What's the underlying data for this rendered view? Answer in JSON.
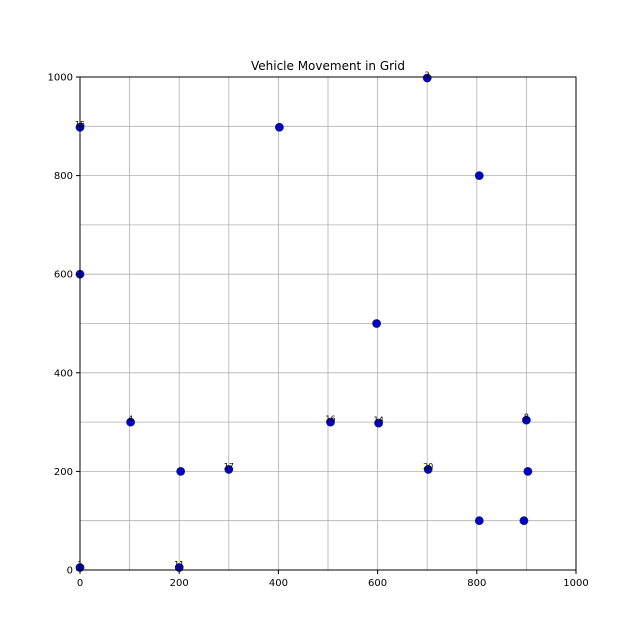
{
  "chart_data": {
    "type": "scatter",
    "title": "Vehicle Movement in Grid",
    "xlabel": "",
    "ylabel": "",
    "xlim": [
      0,
      1000
    ],
    "ylim": [
      0,
      1000
    ],
    "xticks": [
      "0",
      "200",
      "400",
      "600",
      "800",
      "1000"
    ],
    "yticks": [
      "0",
      "200",
      "400",
      "600",
      "800",
      "1000"
    ],
    "grid": true,
    "grid_step": 100,
    "marker_color": "#0000cc",
    "marker_edge": "#1f1f5f",
    "points": [
      {
        "x": 0,
        "y": 5,
        "label": "1"
      },
      {
        "x": 0,
        "y": 600,
        "label": ""
      },
      {
        "x": 0,
        "y": 898,
        "label": "15"
      },
      {
        "x": 102,
        "y": 300,
        "label": "4"
      },
      {
        "x": 200,
        "y": 5,
        "label": "11"
      },
      {
        "x": 203,
        "y": 200,
        "label": ""
      },
      {
        "x": 300,
        "y": 204,
        "label": "17"
      },
      {
        "x": 402,
        "y": 898,
        "label": ""
      },
      {
        "x": 505,
        "y": 300,
        "label": "16"
      },
      {
        "x": 598,
        "y": 500,
        "label": ""
      },
      {
        "x": 602,
        "y": 298,
        "label": "14"
      },
      {
        "x": 700,
        "y": 998,
        "label": "2"
      },
      {
        "x": 702,
        "y": 204,
        "label": "20"
      },
      {
        "x": 805,
        "y": 800,
        "label": ""
      },
      {
        "x": 805,
        "y": 100,
        "label": ""
      },
      {
        "x": 895,
        "y": 100,
        "label": ""
      },
      {
        "x": 900,
        "y": 304,
        "label": "8"
      },
      {
        "x": 903,
        "y": 200,
        "label": ""
      }
    ]
  }
}
